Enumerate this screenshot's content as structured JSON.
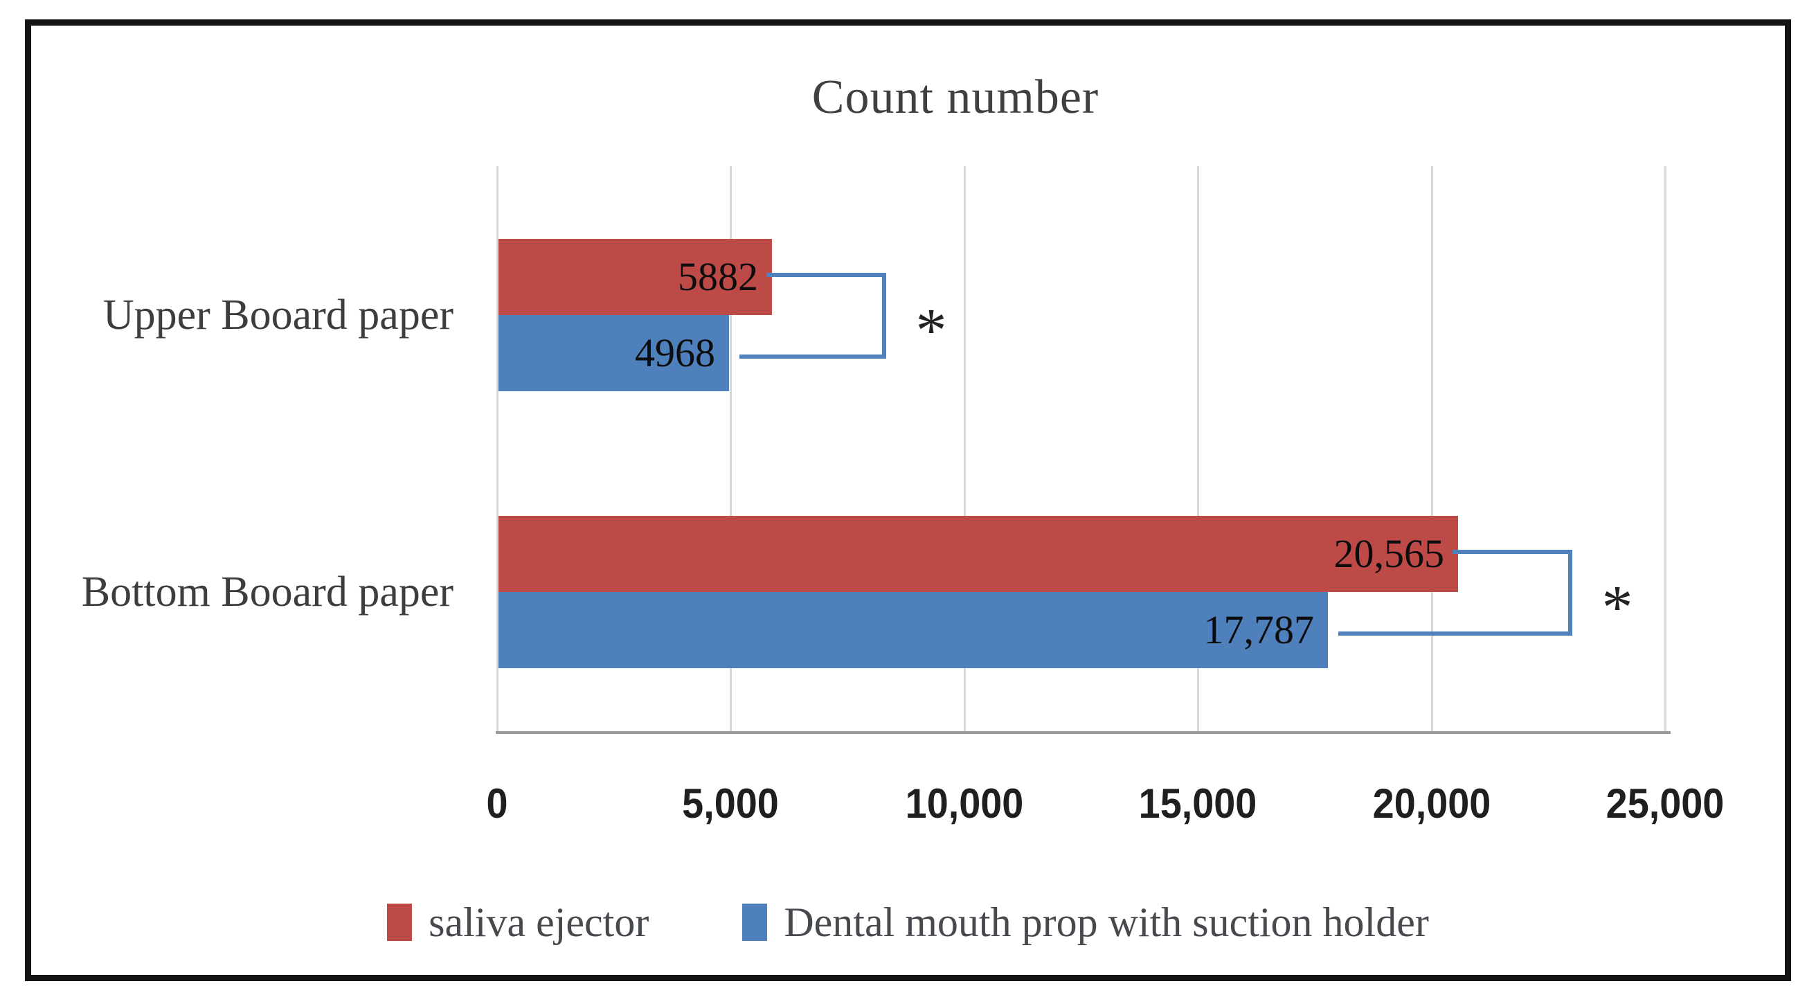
{
  "chart_data": {
    "type": "bar",
    "orientation": "horizontal",
    "title": "Count number",
    "categories": [
      "Upper Booard paper",
      "Bottom Booard paper"
    ],
    "series": [
      {
        "name": "saliva ejector",
        "color": "#be4a47",
        "values": [
          5882,
          20565
        ],
        "value_labels": [
          "5882",
          "20,565"
        ]
      },
      {
        "name": "Dental mouth prop with suction holder",
        "color": "#4e80bc",
        "values": [
          4968,
          17787
        ],
        "value_labels": [
          "4968",
          "17,787"
        ]
      }
    ],
    "xlim": [
      0,
      25000
    ],
    "x_ticks": [
      {
        "value": 0,
        "label": "0"
      },
      {
        "value": 5000,
        "label": "5,000"
      },
      {
        "value": 10000,
        "label": "10,000"
      },
      {
        "value": 15000,
        "label": "15,000"
      },
      {
        "value": 20000,
        "label": "20,000"
      },
      {
        "value": 25000,
        "label": "25,000"
      }
    ],
    "grid": true,
    "legend_position": "bottom",
    "annotations": [
      {
        "type": "significance_bracket",
        "category_index": 0,
        "label": "*",
        "color": "#4f81bd"
      },
      {
        "type": "significance_bracket",
        "category_index": 1,
        "label": "*",
        "color": "#4f81bd"
      }
    ]
  }
}
